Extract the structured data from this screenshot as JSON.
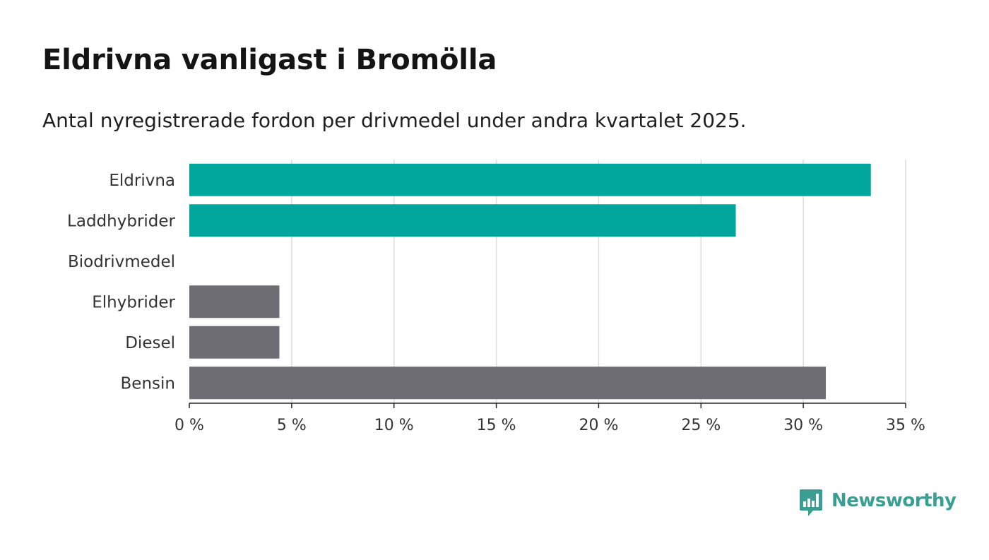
{
  "title": "Eldrivna vanligast i Bromölla",
  "subtitle": "Antal nyregistrerade fordon per drivmedel under andra kvartalet 2025.",
  "brand": {
    "name": "Newsworthy",
    "color": "#3a9e93",
    "icon": "bar-chart-speech-bubble-icon"
  },
  "chart_data": {
    "type": "bar",
    "orientation": "horizontal",
    "categories": [
      "Eldrivna",
      "Laddhybrider",
      "Biodrivmedel",
      "Elhybrider",
      "Diesel",
      "Bensin"
    ],
    "values": [
      33.3,
      26.7,
      0,
      4.4,
      4.4,
      31.1
    ],
    "colors": [
      "#00a59b",
      "#00a59b",
      "#00a59b",
      "#6e6d73",
      "#6e6d73",
      "#6e6d73"
    ],
    "xlim": [
      0,
      35
    ],
    "xticks": [
      0,
      5,
      10,
      15,
      20,
      25,
      30,
      35
    ],
    "tick_suffix": " %",
    "grid": true,
    "xlabel": "",
    "ylabel": ""
  }
}
